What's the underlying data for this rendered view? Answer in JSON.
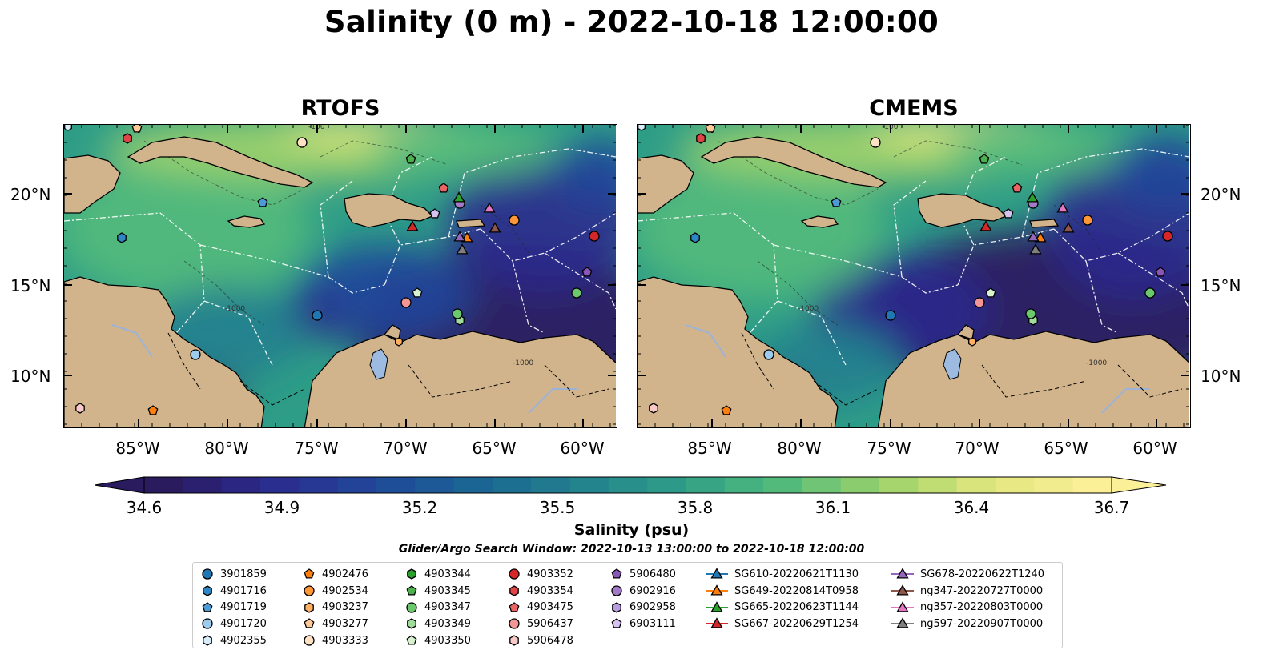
{
  "title": "Salinity (0 m) - 2022-10-18 12:00:00",
  "panels": [
    {
      "title": "RTOFS",
      "variant": "rtofs"
    },
    {
      "title": "CMEMS",
      "variant": "cmems"
    }
  ],
  "lat_labels": [
    "20°N",
    "15°N",
    "10°N"
  ],
  "lon_labels": [
    "85°W",
    "80°W",
    "75°W",
    "70°W",
    "65°W",
    "60°W"
  ],
  "contour_labels": [
    "-100",
    "-1000"
  ],
  "colorbar": {
    "label": "Salinity (psu)",
    "ticks": [
      "34.6",
      "34.9",
      "35.2",
      "35.5",
      "35.8",
      "36.1",
      "36.4",
      "36.7"
    ],
    "min": 34.6,
    "max": 36.7,
    "colormap": [
      "#2a1a5e",
      "#2b2a8c",
      "#21469a",
      "#1a6593",
      "#23808e",
      "#2e9d87",
      "#52bb7c",
      "#9ed26a",
      "#e1e77e",
      "#fbef97"
    ],
    "extend": "both"
  },
  "land_color": "#d2b48c",
  "search_window": "Glider/Argo Search Window: 2022-10-13 13:00:00 to 2022-10-18 12:00:00",
  "legend": {
    "columns": [
      [
        {
          "label": "3901859",
          "shape": "circle",
          "color": "#1f77b4"
        },
        {
          "label": "4901716",
          "shape": "hexagon",
          "color": "#2f86c4"
        },
        {
          "label": "4901719",
          "shape": "pentagon",
          "color": "#4e9ad4"
        },
        {
          "label": "4901720",
          "shape": "circle",
          "color": "#9ccbee"
        },
        {
          "label": "4902355",
          "shape": "hexagon",
          "color": "#d8ecfa"
        }
      ],
      [
        {
          "label": "4902476",
          "shape": "pentagon",
          "color": "#ff7f0e"
        },
        {
          "label": "4902534",
          "shape": "circle",
          "color": "#ff9737"
        },
        {
          "label": "4903237",
          "shape": "hexagon",
          "color": "#ffb060"
        },
        {
          "label": "4903277",
          "shape": "pentagon",
          "color": "#ffc897"
        },
        {
          "label": "4903333",
          "shape": "circle",
          "color": "#ffe2c4"
        }
      ],
      [
        {
          "label": "4903344",
          "shape": "hexagon",
          "color": "#2ca02c"
        },
        {
          "label": "4903345",
          "shape": "pentagon",
          "color": "#4cb04c"
        },
        {
          "label": "4903347",
          "shape": "circle",
          "color": "#6cc86c"
        },
        {
          "label": "4903349",
          "shape": "hexagon",
          "color": "#a0dc9c"
        },
        {
          "label": "4903350",
          "shape": "pentagon",
          "color": "#d6f2cf"
        }
      ],
      [
        {
          "label": "4903352",
          "shape": "circle",
          "color": "#d62728"
        },
        {
          "label": "4903354",
          "shape": "hexagon",
          "color": "#e04545"
        },
        {
          "label": "4903475",
          "shape": "pentagon",
          "color": "#ea6464"
        },
        {
          "label": "5906437",
          "shape": "circle",
          "color": "#f29696"
        },
        {
          "label": "5906478",
          "shape": "hexagon",
          "color": "#f9c8c8"
        }
      ],
      [
        {
          "label": "5906480",
          "shape": "pentagon",
          "color": "#8c56b8"
        },
        {
          "label": "6902916",
          "shape": "circle",
          "color": "#a27ac8"
        },
        {
          "label": "6902958",
          "shape": "hexagon",
          "color": "#b99be0"
        },
        {
          "label": "6903111",
          "shape": "pentagon",
          "color": "#d6c2f0"
        }
      ],
      [
        {
          "label": "SG610-20220621T1130",
          "shape": "triangle",
          "color": "#1f77b4"
        },
        {
          "label": "SG649-20220814T0958",
          "shape": "triangle",
          "color": "#ff7f0e"
        },
        {
          "label": "SG665-20220623T1144",
          "shape": "triangle",
          "color": "#2ca02c"
        },
        {
          "label": "SG667-20220629T1254",
          "shape": "triangle",
          "color": "#d62728"
        }
      ],
      [
        {
          "label": "SG678-20220622T1240",
          "shape": "triangle",
          "color": "#9467bd"
        },
        {
          "label": "ng347-20220727T0000",
          "shape": "triangle",
          "color": "#8c564b"
        },
        {
          "label": "ng357-20220803T0000",
          "shape": "triangle",
          "color": "#e377c2"
        },
        {
          "label": "ng597-20220907T0000",
          "shape": "triangle",
          "color": "#7f7f7f"
        }
      ]
    ]
  }
}
